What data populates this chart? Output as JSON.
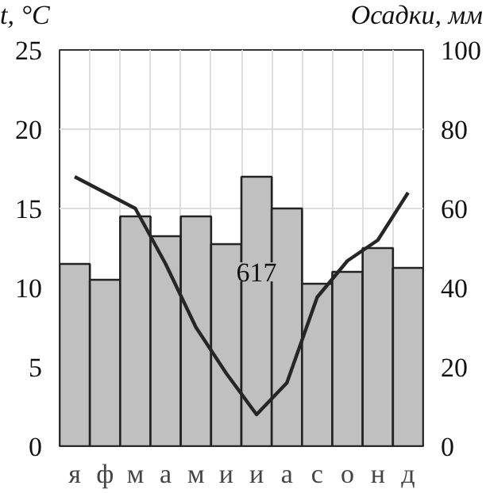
{
  "chart_data": {
    "type": "bar",
    "categories": [
      "я",
      "ф",
      "м",
      "а",
      "м",
      "и",
      "и",
      "а",
      "с",
      "о",
      "н",
      "д"
    ],
    "series": [
      {
        "axis": "y2",
        "color": "#c0c0c0",
        "values": [
          46,
          42,
          58,
          53,
          58,
          51,
          68,
          60,
          41,
          44,
          50,
          45
        ]
      },
      {
        "type": "line",
        "axis": "y",
        "color": "#262626",
        "values": [
          17,
          16,
          15,
          11.5,
          7.5,
          4.6,
          2,
          4,
          9.4,
          11.7,
          13,
          16
        ]
      }
    ],
    "ylabel": "t, °C",
    "y2label": "Осадки, мм",
    "annotations": [
      "617"
    ],
    "ylim": [
      0,
      25
    ],
    "yticks": [
      0,
      5,
      10,
      15,
      20,
      25
    ],
    "y2lim": [
      0,
      100
    ],
    "y2ticks": [
      0,
      20,
      40,
      60,
      80,
      100
    ],
    "grid": true,
    "marker": "none",
    "line_style": "solid"
  }
}
